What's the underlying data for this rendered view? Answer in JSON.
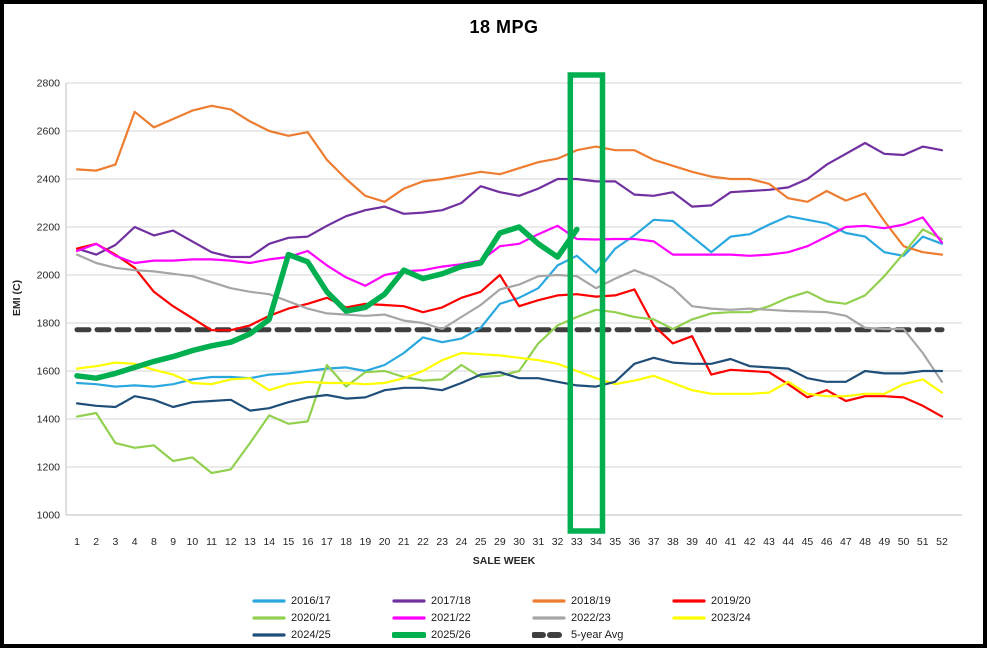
{
  "title": "18 MPG",
  "chart_data": {
    "type": "line",
    "title": "18 MPG",
    "xlabel": "SALE WEEK",
    "ylabel": "EMI (C)",
    "ylim": [
      1000,
      2800
    ],
    "y_step": 200,
    "grid": true,
    "legend_position": "bottom",
    "x_tick_labels": [
      1,
      2,
      3,
      4,
      8,
      9,
      10,
      11,
      12,
      13,
      14,
      15,
      16,
      17,
      18,
      19,
      20,
      21,
      22,
      23,
      24,
      25,
      29,
      30,
      31,
      32,
      33,
      34,
      35,
      36,
      37,
      38,
      39,
      40,
      41,
      42,
      43,
      44,
      45,
      46,
      47,
      48,
      49,
      50,
      51,
      52
    ],
    "annotations": [
      {
        "type": "rect",
        "name": "highlight-box",
        "x_from": 33,
        "x_to": 34,
        "color": "#00B050",
        "note": "vertical highlight over weeks 33-34 spanning full plot height"
      }
    ],
    "series": [
      {
        "name": "2016/17",
        "color": "#29A8E0",
        "width": 2.2,
        "values": [
          1550,
          1545,
          1535,
          1540,
          1535,
          1545,
          1565,
          1575,
          1575,
          1570,
          1585,
          1590,
          1600,
          1610,
          1615,
          1600,
          1625,
          1675,
          1740,
          1720,
          1735,
          1780,
          1880,
          1905,
          1945,
          2040,
          2080,
          2010,
          2110,
          2165,
          2230,
          2225,
          2160,
          2095,
          2160,
          2170,
          2210,
          2245,
          2230,
          2215,
          2175,
          2160,
          2095,
          2080,
          2160,
          2130
        ]
      },
      {
        "name": "2017/18",
        "color": "#7030A0",
        "width": 2.2,
        "values": [
          2110,
          2085,
          2125,
          2200,
          2165,
          2185,
          2140,
          2095,
          2075,
          2075,
          2130,
          2155,
          2160,
          2205,
          2245,
          2270,
          2285,
          2255,
          2260,
          2270,
          2300,
          2370,
          2345,
          2330,
          2360,
          2400,
          2400,
          2390,
          2390,
          2335,
          2330,
          2345,
          2285,
          2290,
          2345,
          2350,
          2355,
          2365,
          2400,
          2460,
          2505,
          2550,
          2505,
          2500,
          2535,
          2520
        ]
      },
      {
        "name": "2018/19",
        "color": "#ED7D31",
        "width": 2.2,
        "values": [
          2440,
          2435,
          2460,
          2680,
          2615,
          2650,
          2685,
          2705,
          2690,
          2640,
          2600,
          2580,
          2595,
          2480,
          2400,
          2330,
          2305,
          2360,
          2390,
          2400,
          2415,
          2430,
          2420,
          2445,
          2470,
          2485,
          2520,
          2535,
          2520,
          2520,
          2480,
          2455,
          2430,
          2410,
          2400,
          2400,
          2380,
          2320,
          2305,
          2350,
          2310,
          2340,
          2225,
          2120,
          2095,
          2085
        ]
      },
      {
        "name": "2019/20",
        "color": "#FF0000",
        "width": 2.2,
        "values": [
          2110,
          2130,
          2085,
          2030,
          1930,
          1870,
          1820,
          1770,
          1770,
          1790,
          1830,
          1860,
          1880,
          1905,
          1865,
          1880,
          1875,
          1870,
          1845,
          1865,
          1905,
          1930,
          2000,
          1870,
          1895,
          1915,
          1920,
          1910,
          1915,
          1940,
          1790,
          1715,
          1745,
          1585,
          1605,
          1600,
          1595,
          1545,
          1490,
          1520,
          1475,
          1495,
          1495,
          1490,
          1455,
          1410
        ]
      },
      {
        "name": "2020/21",
        "color": "#92D050",
        "width": 2.2,
        "values": [
          1410,
          1425,
          1300,
          1280,
          1290,
          1225,
          1240,
          1175,
          1190,
          1300,
          1415,
          1380,
          1390,
          1625,
          1535,
          1595,
          1600,
          1575,
          1560,
          1565,
          1625,
          1575,
          1580,
          1600,
          1715,
          1790,
          1825,
          1855,
          1845,
          1825,
          1815,
          1775,
          1815,
          1840,
          1845,
          1845,
          1870,
          1905,
          1930,
          1890,
          1880,
          1915,
          1995,
          2090,
          2190,
          2150
        ]
      },
      {
        "name": "2021/22",
        "color": "#FF00FF",
        "width": 2.2,
        "values": [
          2100,
          2130,
          2080,
          2050,
          2060,
          2060,
          2065,
          2065,
          2060,
          2050,
          2065,
          2075,
          2100,
          2040,
          1990,
          1955,
          2000,
          2015,
          2020,
          2035,
          2045,
          2060,
          2120,
          2130,
          2170,
          2205,
          2150,
          2148,
          2150,
          2150,
          2140,
          2085,
          2085,
          2085,
          2085,
          2080,
          2085,
          2095,
          2120,
          2160,
          2200,
          2205,
          2195,
          2210,
          2240,
          2135
        ]
      },
      {
        "name": "2022/23",
        "color": "#A6A6A6",
        "width": 2.2,
        "values": [
          2085,
          2050,
          2030,
          2020,
          2015,
          2005,
          1995,
          1970,
          1945,
          1930,
          1920,
          1890,
          1860,
          1840,
          1835,
          1830,
          1835,
          1810,
          1800,
          1775,
          1825,
          1875,
          1940,
          1960,
          1995,
          2000,
          1995,
          1945,
          1985,
          2020,
          1990,
          1945,
          1870,
          1860,
          1855,
          1860,
          1855,
          1850,
          1848,
          1845,
          1830,
          1780,
          1775,
          1775,
          1675,
          1555
        ]
      },
      {
        "name": "2023/24",
        "color": "#FFFF00",
        "width": 2.2,
        "values": [
          1610,
          1620,
          1635,
          1630,
          1605,
          1585,
          1550,
          1545,
          1565,
          1570,
          1520,
          1545,
          1555,
          1550,
          1550,
          1545,
          1550,
          1570,
          1600,
          1645,
          1675,
          1670,
          1665,
          1655,
          1645,
          1630,
          1600,
          1570,
          1545,
          1560,
          1580,
          1550,
          1520,
          1505,
          1505,
          1505,
          1510,
          1555,
          1505,
          1495,
          1495,
          1505,
          1505,
          1545,
          1565,
          1510
        ]
      },
      {
        "name": "2024/25",
        "color": "#1F4E79",
        "width": 2.2,
        "values": [
          1465,
          1455,
          1450,
          1495,
          1480,
          1450,
          1470,
          1475,
          1480,
          1435,
          1445,
          1470,
          1490,
          1500,
          1485,
          1490,
          1520,
          1530,
          1530,
          1520,
          1550,
          1585,
          1595,
          1570,
          1570,
          1555,
          1540,
          1535,
          1555,
          1630,
          1655,
          1635,
          1630,
          1630,
          1650,
          1620,
          1615,
          1610,
          1570,
          1555,
          1555,
          1600,
          1590,
          1590,
          1600,
          1600
        ]
      },
      {
        "name": "2025/26",
        "color": "#00B050",
        "width": 5.5,
        "values": [
          1580,
          1570,
          1590,
          1615,
          1640,
          1660,
          1685,
          1705,
          1720,
          1755,
          1815,
          2085,
          2055,
          1930,
          1850,
          1865,
          1920,
          2020,
          1985,
          2005,
          2035,
          2050,
          2175,
          2200,
          2130,
          2075,
          2190
        ]
      },
      {
        "name": "5-year Avg",
        "color": "#3F3F3F",
        "width": 5,
        "dash": [
          12,
          8
        ],
        "constant": 1772
      }
    ]
  }
}
